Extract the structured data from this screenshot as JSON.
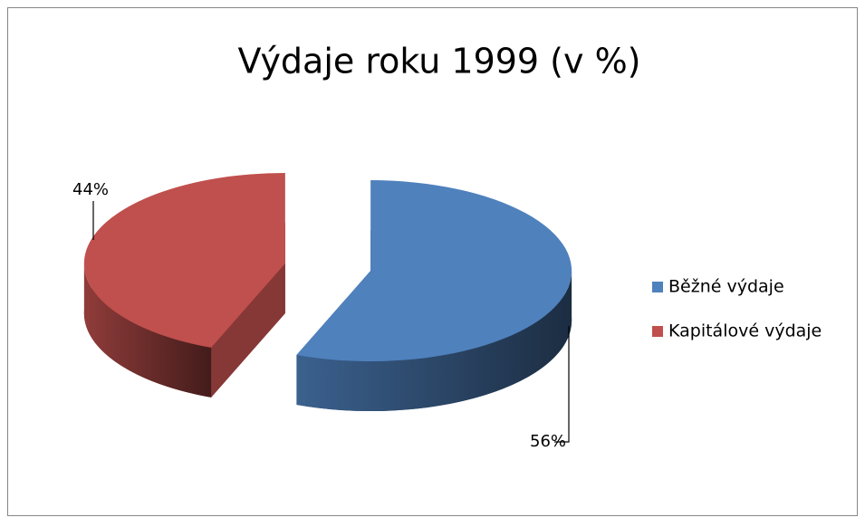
{
  "chart_data": {
    "type": "pie",
    "title": "Výdaje roku 1999 (v %)",
    "categories": [
      "Běžné výdaje",
      "Kapitálové výdaje"
    ],
    "values": [
      56,
      44
    ],
    "value_labels": [
      "56%",
      "44%"
    ],
    "colors": [
      "#4f81bd",
      "#c0504d"
    ],
    "legend": "right"
  }
}
